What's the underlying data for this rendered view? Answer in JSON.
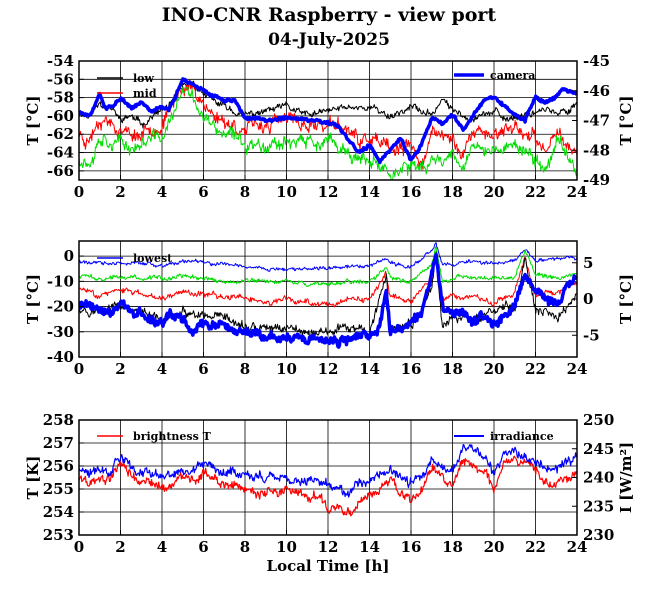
{
  "title": "INO-CNR Raspberry - view port",
  "subtitle": "04-July-2025",
  "colors": {
    "black": "#000000",
    "red": "#ff0000",
    "green": "#00dd00",
    "blue": "#0000ff"
  },
  "chart_data": [
    {
      "type": "line",
      "xlabel": "",
      "ylabel": "T [°C]",
      "y2label": "T [°C]",
      "xlim": [
        0,
        24
      ],
      "ylim": [
        -67,
        -54
      ],
      "y2lim": [
        -49,
        -45
      ],
      "xticks": [
        "0",
        "2",
        "4",
        "6",
        "8",
        "10",
        "12",
        "14",
        "16",
        "18",
        "20",
        "22",
        "24"
      ],
      "yticks": [
        "-54",
        "-56",
        "-58",
        "-60",
        "-62",
        "-64",
        "-66"
      ],
      "y2ticks": [
        "-45",
        "-46",
        "-47",
        "-48",
        "-49"
      ],
      "grid": true,
      "legend_left": "top-left",
      "legend_right": "top-right",
      "series": [
        {
          "name": "low",
          "color": "#000000",
          "axis": "left",
          "width": 1,
          "noise": 0.5,
          "seed": 11,
          "x": [
            0,
            0.5,
            1,
            1.5,
            2,
            2.5,
            3,
            3.5,
            4,
            4.5,
            5,
            5.5,
            6,
            6.5,
            7,
            7.5,
            8,
            9,
            10,
            11,
            12,
            13,
            14,
            14.5,
            15,
            16,
            17,
            17.5,
            18,
            19,
            20,
            20.5,
            21,
            22,
            22.5,
            23,
            23.5,
            24
          ],
          "y": [
            -59.5,
            -60,
            -58.5,
            -59,
            -60.5,
            -60,
            -61,
            -60,
            -59.5,
            -58.5,
            -57,
            -56.5,
            -57.5,
            -58.5,
            -59,
            -59.5,
            -60,
            -59.5,
            -59,
            -60,
            -59.5,
            -59,
            -59,
            -59.5,
            -60,
            -59,
            -60,
            -58,
            -59.5,
            -60,
            -59.5,
            -60.5,
            -60,
            -59.5,
            -59,
            -60,
            -59.5,
            -58.5
          ]
        },
        {
          "name": "mid",
          "color": "#ff0000",
          "axis": "left",
          "width": 1,
          "noise": 1.0,
          "seed": 23,
          "x": [
            0,
            0.5,
            1,
            1.5,
            2,
            2.5,
            3,
            3.5,
            4,
            4.5,
            5,
            5.5,
            6,
            6.5,
            7,
            7.5,
            8,
            9,
            10,
            11,
            12,
            13,
            13.5,
            14,
            15,
            16,
            16.5,
            17,
            18,
            18.5,
            19,
            19.5,
            20,
            21,
            22,
            22.5,
            23,
            23.5,
            24
          ],
          "y": [
            -62,
            -62.5,
            -60,
            -60.5,
            -61.5,
            -62,
            -62,
            -61,
            -61,
            -59,
            -56.5,
            -57,
            -58.5,
            -60,
            -60.5,
            -61,
            -61.5,
            -61,
            -60.5,
            -61,
            -61,
            -61.5,
            -63,
            -62.5,
            -64,
            -63.5,
            -65,
            -62,
            -62.5,
            -64,
            -62,
            -61.5,
            -62,
            -61,
            -63,
            -64,
            -61,
            -63,
            -64
          ]
        },
        {
          "name": "",
          "color": "#00dd00",
          "axis": "left",
          "width": 1,
          "noise": 1.0,
          "seed": 37,
          "x": [
            0,
            0.5,
            1,
            1.5,
            2,
            2.5,
            3,
            3.5,
            4,
            4.5,
            5,
            5.5,
            6,
            6.5,
            7,
            7.5,
            8,
            9,
            10,
            11,
            12,
            13,
            14,
            15,
            16,
            16.5,
            17,
            18,
            18.5,
            19,
            20,
            21,
            22,
            22.5,
            23,
            23.5,
            24
          ],
          "y": [
            -64.5,
            -65,
            -62,
            -62.5,
            -63,
            -63.5,
            -63,
            -62.5,
            -62.5,
            -60,
            -57.5,
            -58,
            -60,
            -61.5,
            -62,
            -62.5,
            -63,
            -63,
            -62.5,
            -63,
            -63,
            -64,
            -65.5,
            -66,
            -65.5,
            -66.5,
            -65,
            -64,
            -65,
            -63.5,
            -64,
            -63,
            -65,
            -66,
            -62.5,
            -64,
            -66
          ]
        },
        {
          "name": "camera",
          "color": "#0000ff",
          "axis": "right",
          "width": 3.5,
          "noise": 0.07,
          "seed": 51,
          "x": [
            0,
            0.5,
            1,
            1.3,
            1.6,
            2,
            2.5,
            3,
            3.5,
            4,
            4.3,
            4.6,
            5,
            5.5,
            6,
            6.5,
            7,
            7.5,
            8,
            9,
            10,
            11,
            12,
            12.5,
            13,
            13.5,
            14,
            14.5,
            15,
            15.5,
            16,
            16.5,
            17,
            17.5,
            18,
            18.5,
            19,
            19.5,
            20,
            20.5,
            21,
            21.5,
            22,
            22.5,
            23,
            23.3,
            23.6,
            24
          ],
          "y": [
            -46.7,
            -46.9,
            -46.1,
            -46.6,
            -46.5,
            -46.3,
            -46.6,
            -46.4,
            -46.7,
            -46.5,
            -46.6,
            -46.3,
            -45.6,
            -45.8,
            -46,
            -46.2,
            -46.3,
            -46.3,
            -46.9,
            -47,
            -46.9,
            -47,
            -47.1,
            -47.2,
            -47.7,
            -48.1,
            -47.8,
            -48.4,
            -48,
            -47.6,
            -48.3,
            -47.8,
            -46.9,
            -47.1,
            -46.8,
            -47.3,
            -46.8,
            -46.3,
            -46.2,
            -46.5,
            -46.8,
            -47.0,
            -46.2,
            -46.4,
            -46.2,
            -45.9,
            -46.0,
            -46.1
          ]
        }
      ]
    },
    {
      "type": "line",
      "xlabel": "",
      "ylabel": "T [°C]",
      "y2label": "T [°C]",
      "xlim": [
        0,
        24
      ],
      "ylim": [
        -40,
        6
      ],
      "y2lim": [
        -8,
        8
      ],
      "xticks": [
        "0",
        "2",
        "4",
        "6",
        "8",
        "10",
        "12",
        "14",
        "16",
        "18",
        "20",
        "22",
        "24"
      ],
      "yticks": [
        "0",
        "-10",
        "-20",
        "-30",
        "-40"
      ],
      "y2ticks": [
        "5",
        "0",
        "-5"
      ],
      "grid": true,
      "legend_left": "top-left",
      "series": [
        {
          "name": "lowest",
          "color": "#0000ff",
          "axis": "left",
          "width": 1,
          "noise": 1.0,
          "seed": 61,
          "x": [
            0,
            1,
            2,
            3,
            4,
            5,
            6,
            7,
            8,
            9,
            10,
            11,
            12,
            13,
            14,
            14.8,
            15,
            16,
            17,
            17.2,
            17.5,
            18,
            19,
            20,
            21,
            21.5,
            22,
            23,
            24
          ],
          "y": [
            -2,
            -3,
            -3,
            -3,
            -4,
            -2,
            -3,
            -3,
            -4,
            -5,
            -5,
            -5,
            -5,
            -4,
            -4,
            -1,
            -3,
            -4,
            2,
            5,
            -3,
            -3,
            -2,
            -3,
            -2,
            3,
            -2,
            -1,
            0
          ]
        },
        {
          "name": "",
          "color": "#00dd00",
          "axis": "left",
          "width": 1,
          "noise": 1.2,
          "seed": 73,
          "x": [
            0,
            1,
            2,
            3,
            4,
            5,
            6,
            7,
            8,
            9,
            10,
            11,
            12,
            13,
            14,
            14.8,
            15,
            16,
            17,
            17.2,
            17.5,
            18,
            19,
            20,
            21,
            21.5,
            22,
            23,
            24
          ],
          "y": [
            -8,
            -9,
            -8,
            -9,
            -9,
            -8,
            -9,
            -10,
            -10,
            -10,
            -10,
            -11,
            -11,
            -10,
            -10,
            -4,
            -9,
            -10,
            -3,
            4,
            -9,
            -9,
            -8,
            -9,
            -8,
            2,
            -8,
            -8,
            -7
          ]
        },
        {
          "name": "",
          "color": "#ff0000",
          "axis": "left",
          "width": 1,
          "noise": 1.5,
          "seed": 83,
          "x": [
            0,
            1,
            2,
            3,
            4,
            5,
            6,
            7,
            8,
            9,
            10,
            11,
            12,
            13,
            14,
            14.8,
            15,
            16,
            17,
            17.2,
            17.5,
            18,
            19,
            20,
            21,
            21.5,
            22,
            23,
            24
          ],
          "y": [
            -13,
            -15,
            -14,
            -15,
            -16,
            -14,
            -15,
            -16,
            -17,
            -18,
            -18,
            -18,
            -19,
            -18,
            -18,
            -7,
            -16,
            -18,
            -8,
            2,
            -17,
            -16,
            -17,
            -18,
            -14,
            0,
            -15,
            -14,
            -11
          ]
        },
        {
          "name": "",
          "color": "#000000",
          "axis": "left",
          "width": 1,
          "noise": 2.5,
          "seed": 97,
          "x": [
            0,
            1,
            2,
            3,
            4,
            5,
            6,
            7,
            8,
            9,
            10,
            11,
            12,
            13,
            14,
            14.8,
            15,
            16,
            17,
            17.2,
            17.5,
            18,
            19,
            20,
            21,
            21.5,
            22,
            23,
            24
          ],
          "y": [
            -20,
            -22,
            -20,
            -24,
            -25,
            -23,
            -25,
            -26,
            -28,
            -29,
            -28,
            -30,
            -30,
            -29,
            -30,
            -8,
            -28,
            -29,
            -12,
            0,
            -27,
            -24,
            -25,
            -22,
            -20,
            -2,
            -22,
            -25,
            -15
          ]
        },
        {
          "name": "",
          "color": "#0000ff",
          "axis": "right",
          "width": 3.5,
          "noise": 0.8,
          "seed": 109,
          "x": [
            0,
            0.5,
            1,
            1.5,
            2,
            2.5,
            3,
            3.5,
            4,
            4.5,
            5,
            5.5,
            6,
            6.5,
            7,
            7.5,
            8,
            8.5,
            9,
            9.5,
            10,
            10.5,
            11,
            11.5,
            12,
            12.5,
            13,
            13.5,
            14,
            14.5,
            14.8,
            15,
            15.5,
            16,
            16.5,
            17,
            17.2,
            17.5,
            18,
            18.5,
            19,
            19.5,
            20,
            20.5,
            21,
            21.5,
            22,
            22.5,
            23,
            23.5,
            24
          ],
          "y": [
            -0.5,
            -1,
            -1.5,
            -2,
            -0.5,
            -2,
            -2,
            -3,
            -3,
            -2.5,
            -3,
            -4,
            -3.5,
            -4,
            -4,
            -4.5,
            -4.5,
            -5,
            -5,
            -5.5,
            -5.5,
            -5.5,
            -5.5,
            -6,
            -6,
            -6,
            -5.5,
            -5,
            -4.5,
            -3.5,
            2,
            -4,
            -3.5,
            -3,
            -2,
            4,
            6,
            -1,
            -2,
            -1,
            -3,
            -2.5,
            -3,
            -2.5,
            -1,
            3,
            1,
            -0.5,
            -1,
            1.5,
            3
          ]
        }
      ]
    },
    {
      "type": "line",
      "xlabel": "Local Time [h]",
      "ylabel": "T [K]",
      "y2label": "I [W/m²]",
      "xlim": [
        0,
        24
      ],
      "ylim": [
        253,
        258
      ],
      "y2lim": [
        230,
        250
      ],
      "xticks": [
        "0",
        "2",
        "4",
        "6",
        "8",
        "10",
        "12",
        "14",
        "16",
        "18",
        "20",
        "22",
        "24"
      ],
      "yticks": [
        "258",
        "257",
        "256",
        "255",
        "254",
        "253"
      ],
      "y2ticks": [
        "250",
        "245",
        "240",
        "235",
        "230"
      ],
      "grid": true,
      "legend_left": "top-left",
      "legend_right": "top-right",
      "series": [
        {
          "name": "brightness T",
          "color": "#ff0000",
          "axis": "left",
          "width": 1.2,
          "noise": 0.28,
          "seed": 131,
          "x": [
            0,
            0.5,
            1,
            1.5,
            2,
            2.5,
            3,
            3.5,
            4,
            4.5,
            5,
            5.5,
            6,
            6.5,
            7,
            7.5,
            8,
            8.5,
            9,
            9.5,
            10,
            10.5,
            11,
            11.5,
            12,
            12.5,
            13,
            13.5,
            14,
            14.5,
            15,
            15.5,
            16,
            16.5,
            17,
            17.5,
            18,
            18.5,
            19,
            19.5,
            20,
            20.5,
            21,
            21.5,
            22,
            22.5,
            23,
            23.5,
            24
          ],
          "y": [
            255.5,
            255.3,
            255.5,
            255.3,
            256.2,
            255.6,
            255.3,
            255.2,
            255.1,
            255.3,
            255.5,
            255.2,
            255.8,
            255.5,
            255.1,
            255.3,
            254.9,
            254.9,
            254.9,
            255.0,
            255.0,
            254.8,
            254.6,
            254.7,
            254.3,
            254.1,
            254.0,
            254.5,
            254.8,
            255.0,
            255.4,
            254.9,
            254.5,
            254.8,
            256.0,
            255.6,
            255.2,
            256.1,
            256.2,
            255.8,
            254.9,
            256.2,
            256.3,
            256.0,
            255.7,
            255.4,
            255.2,
            255.5,
            255.8
          ]
        },
        {
          "name": "irradiance",
          "color": "#0000ff",
          "axis": "right",
          "width": 1.2,
          "noise": 1.1,
          "seed": 149,
          "x": [
            0,
            0.5,
            1,
            1.5,
            2,
            2.5,
            3,
            3.5,
            4,
            4.5,
            5,
            5.5,
            6,
            6.5,
            7,
            7.5,
            8,
            8.5,
            9,
            9.5,
            10,
            10.5,
            11,
            11.5,
            12,
            12.5,
            13,
            13.5,
            14,
            14.5,
            15,
            15.5,
            16,
            16.5,
            17,
            17.5,
            18,
            18.5,
            19,
            19.5,
            20,
            20.5,
            21,
            21.5,
            22,
            22.5,
            23,
            23.5,
            24
          ],
          "y": [
            241.5,
            241,
            241.5,
            241,
            244,
            242,
            241,
            240.5,
            240.5,
            241,
            241.5,
            241,
            242.5,
            241.5,
            240.5,
            241,
            239.5,
            239.5,
            239.5,
            240,
            240,
            239.5,
            239,
            239.5,
            238.5,
            238,
            237.5,
            239,
            240,
            240.5,
            241.5,
            240,
            239,
            240,
            243.5,
            242,
            241,
            244.5,
            245,
            243.5,
            240,
            244.5,
            245,
            244,
            243,
            242,
            241.5,
            242.5,
            243.5
          ]
        }
      ]
    }
  ]
}
